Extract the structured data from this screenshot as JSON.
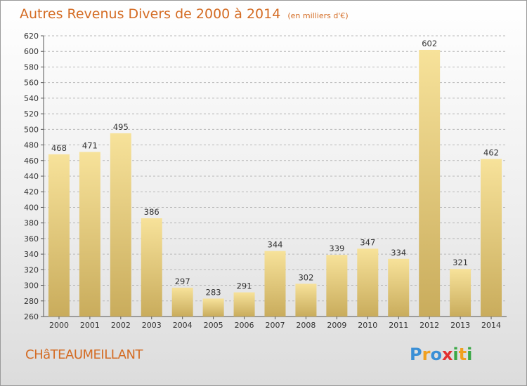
{
  "title": {
    "main": "Autres Revenus Divers de 2000 à 2014",
    "unit": "(en milliers d'€)"
  },
  "commune": "CHâTEAUMEILLANT",
  "logo": {
    "text": "Proxiti",
    "letters": [
      {
        "ch": "P",
        "color": "#3a8fd6"
      },
      {
        "ch": "r",
        "color": "#f0a020"
      },
      {
        "ch": "o",
        "color": "#3a8fd6"
      },
      {
        "ch": "x",
        "color": "#e23030"
      },
      {
        "ch": "i",
        "color": "#3aa845"
      },
      {
        "ch": "t",
        "color": "#f0a020"
      },
      {
        "ch": "i",
        "color": "#3aa845"
      }
    ]
  },
  "colors": {
    "bar_light": "#f7e29a",
    "bar_dark": "#c9ac5c",
    "title": "#d46c24",
    "grid": "#b8b8b8"
  },
  "chart_data": {
    "type": "bar",
    "title": "Autres Revenus Divers de 2000 à 2014",
    "subtitle": "(en milliers d'€)",
    "xlabel": "",
    "ylabel": "",
    "categories": [
      "2000",
      "2001",
      "2002",
      "2003",
      "2004",
      "2005",
      "2006",
      "2007",
      "2008",
      "2009",
      "2010",
      "2011",
      "2012",
      "2013",
      "2014"
    ],
    "values": [
      468,
      471,
      495,
      386,
      297,
      283,
      291,
      344,
      302,
      339,
      347,
      334,
      602,
      321,
      462
    ],
    "ylim": [
      260,
      620
    ],
    "yticks": [
      260,
      280,
      300,
      320,
      340,
      360,
      380,
      400,
      420,
      440,
      460,
      480,
      500,
      520,
      540,
      560,
      580,
      600,
      620
    ],
    "grid": true,
    "legend": "none"
  }
}
